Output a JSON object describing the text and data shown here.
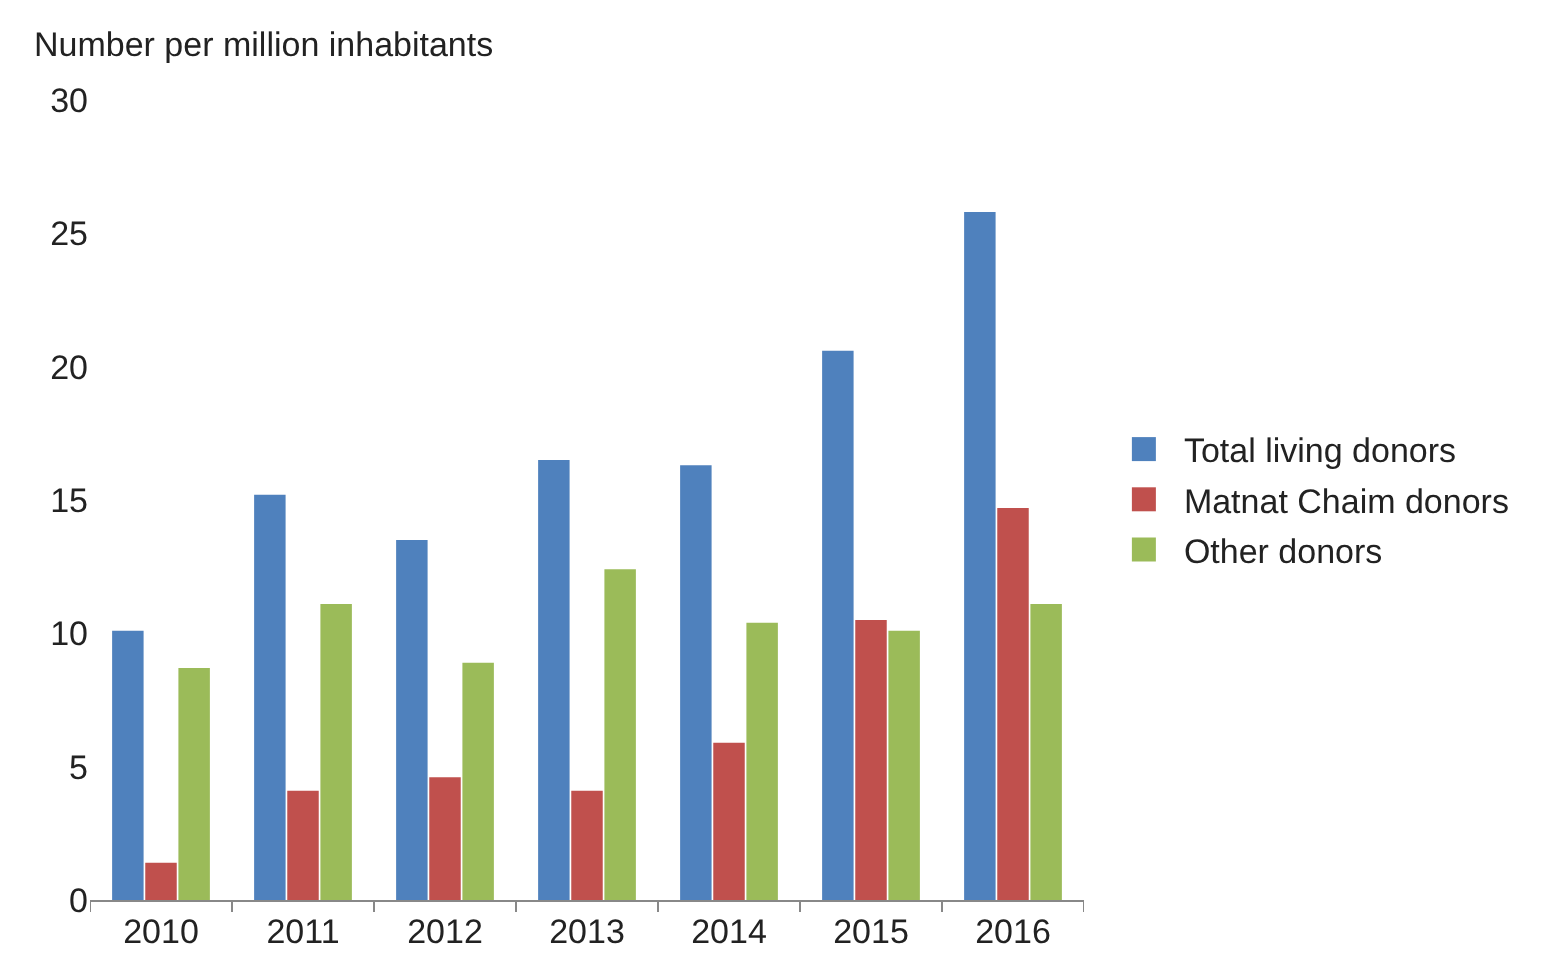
{
  "chart_data": {
    "type": "bar",
    "ylabel": "Number per million inhabitants",
    "categories": [
      "2010",
      "2011",
      "2012",
      "2013",
      "2014",
      "2015",
      "2016"
    ],
    "series": [
      {
        "name": "Total living donors",
        "color": "#4f81bd",
        "values": [
          10.1,
          15.2,
          13.5,
          16.5,
          16.3,
          20.6,
          25.8
        ]
      },
      {
        "name": "Matnat Chaim donors",
        "color": "#c0504d",
        "values": [
          1.4,
          4.1,
          4.6,
          4.1,
          5.9,
          10.5,
          14.7
        ]
      },
      {
        "name": "Other donors",
        "color": "#9bbb59",
        "values": [
          8.7,
          11.1,
          8.9,
          12.4,
          10.4,
          10.1,
          11.1
        ]
      }
    ],
    "ylim": [
      0,
      30
    ],
    "yticks": [
      0,
      5,
      10,
      15,
      20,
      25,
      30
    ],
    "grid": false,
    "legend": "right"
  }
}
